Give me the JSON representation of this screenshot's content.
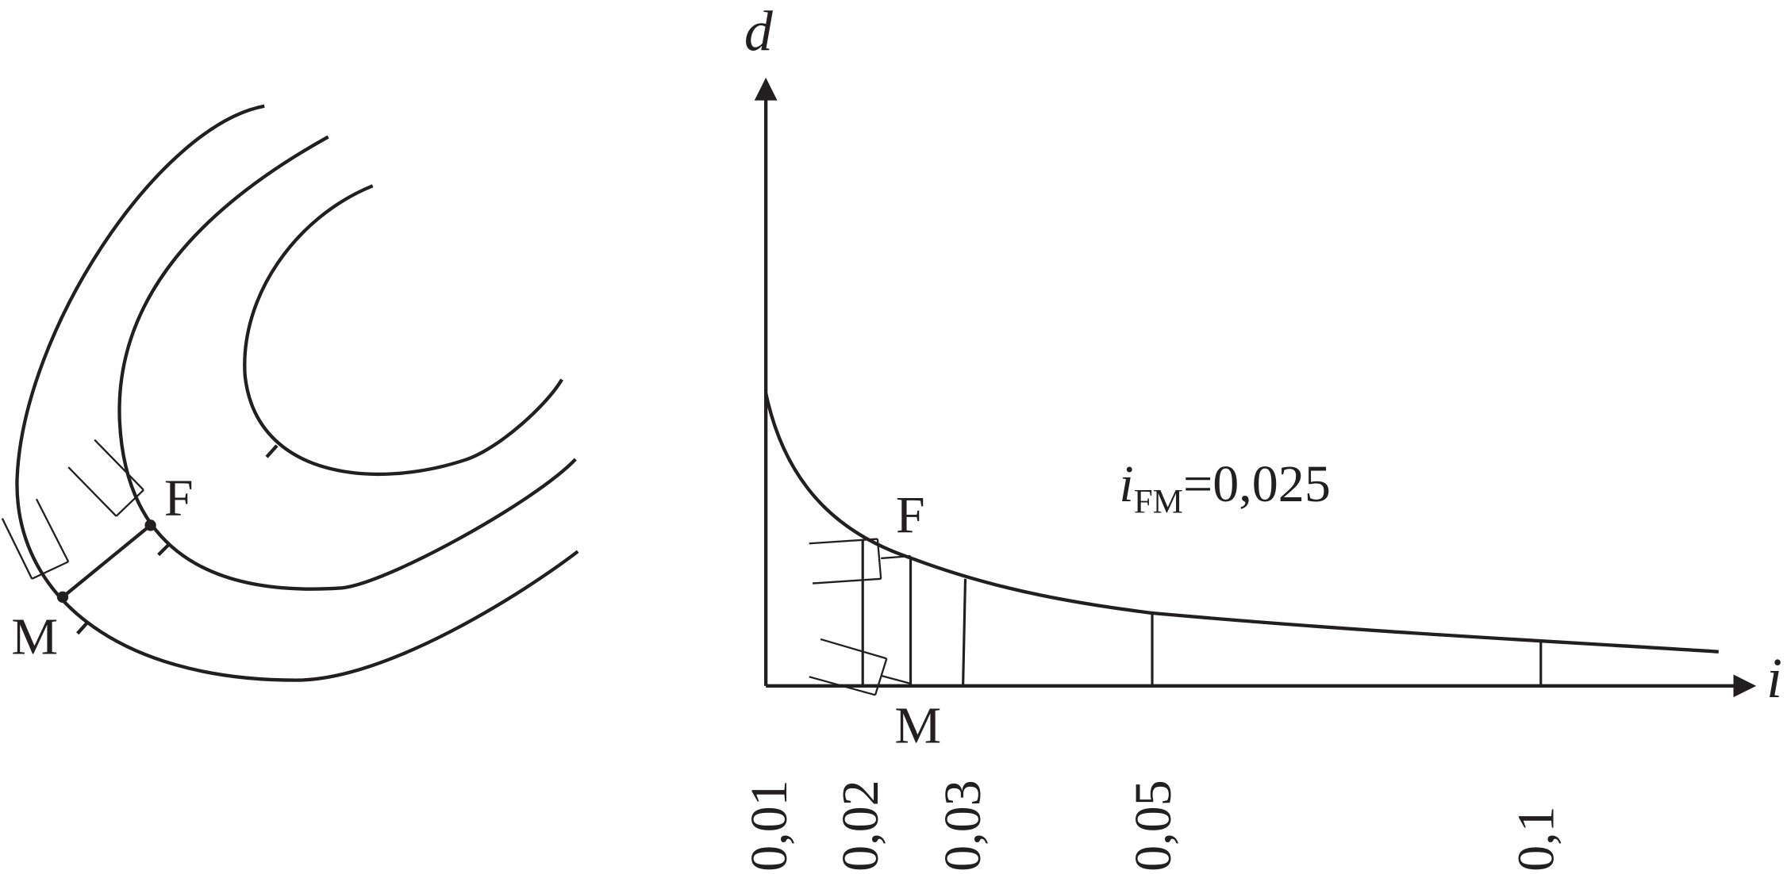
{
  "left_panel": {
    "point_f": "F",
    "point_m": "M"
  },
  "right_panel": {
    "y_axis_label": "d",
    "x_axis_label": "i",
    "point_f": "F",
    "point_m": "M",
    "annotation": {
      "symbol": "i",
      "subscript": "FM",
      "text": "=0,025"
    },
    "tick_labels": [
      "0,01",
      "0,02",
      "0,03",
      "0,05",
      "0,1"
    ]
  }
}
